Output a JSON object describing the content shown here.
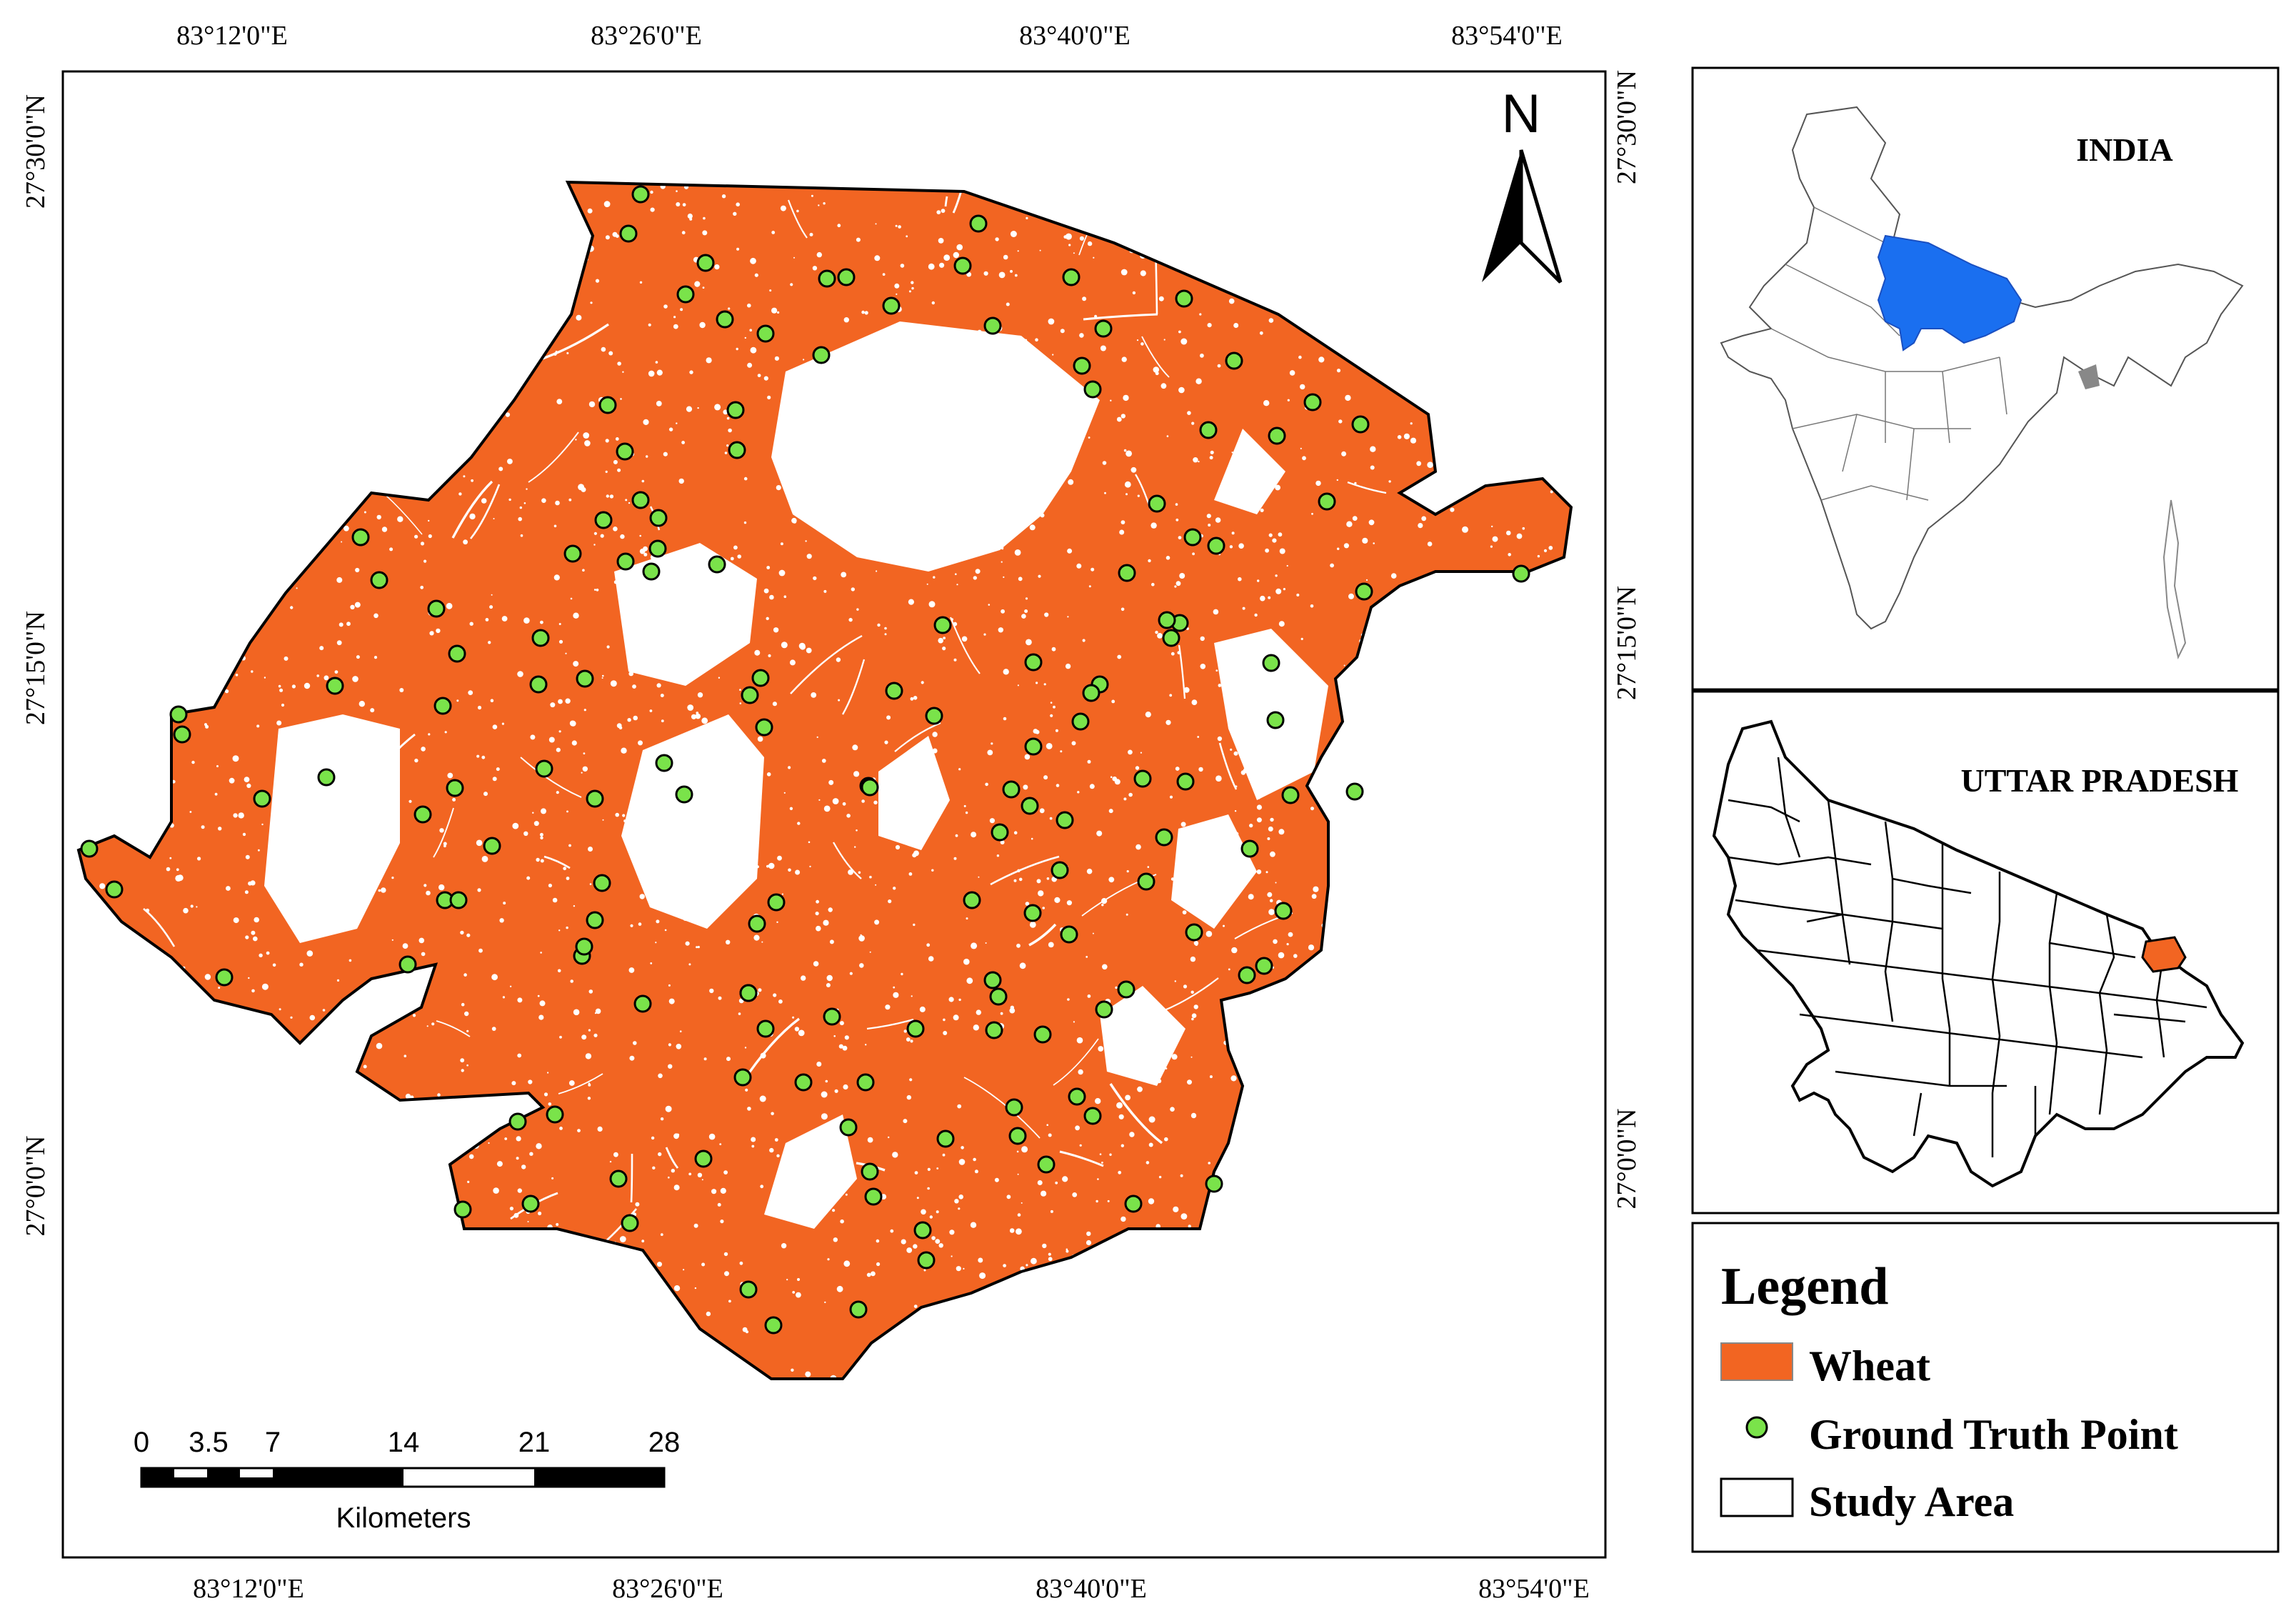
{
  "map": {
    "top_ticks": [
      "83°12'0\"E",
      "83°26'0\"E",
      "83°40'0\"E",
      "83°54'0\"E"
    ],
    "bottom_ticks": [
      "83°12'0\"E",
      "83°26'0\"E",
      "83°40'0\"E",
      "83°54'0\"E"
    ],
    "left_ticks": [
      "27°30'0\"N",
      "27°15'0\"N",
      "27°0'0\"N"
    ],
    "right_ticks": [
      "27°30'0\"N",
      "27°15'0\"N",
      "27°0'0\"N"
    ],
    "north_label": "N",
    "colors": {
      "wheat": "#f26522",
      "ground_truth": "#7ae34a",
      "india_state": "#1a6ff0",
      "district": "#f26522"
    }
  },
  "scale_bar": {
    "ticks": [
      "0",
      "3.5",
      "7",
      "14",
      "21",
      "28"
    ],
    "unit": "Kilometers"
  },
  "insets": {
    "india_label": "INDIA",
    "up_label": "UTTAR PRADESH"
  },
  "legend": {
    "title": "Legend",
    "items": [
      {
        "label": "Wheat",
        "symbol": "orange-fill"
      },
      {
        "label": "Ground Truth Point",
        "symbol": "green-dot"
      },
      {
        "label": "Study Area",
        "symbol": "white-box"
      }
    ]
  }
}
